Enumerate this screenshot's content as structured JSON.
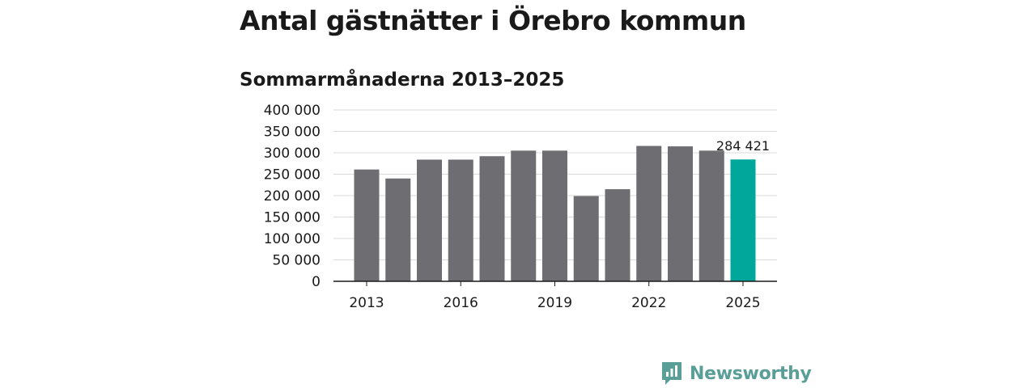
{
  "header": {
    "title": "Antal gästnätter i Örebro kommun",
    "subtitle": "Sommarmånaderna 2013–2025"
  },
  "branding": {
    "logo_text": "Newsworthy",
    "logo_icon": "bar-chart-speech-bubble-icon",
    "logo_color": "#5a9e98"
  },
  "chart_data": {
    "type": "bar",
    "title": "Antal gästnätter i Örebro kommun",
    "subtitle": "Sommarmånaderna 2013–2025",
    "xlabel": "",
    "ylabel": "",
    "categories": [
      "2013",
      "2014",
      "2015",
      "2016",
      "2017",
      "2018",
      "2019",
      "2020",
      "2021",
      "2022",
      "2023",
      "2024",
      "2025"
    ],
    "values": [
      261000,
      240000,
      284000,
      284000,
      292000,
      305000,
      305000,
      199000,
      215000,
      316000,
      315000,
      305000,
      284421
    ],
    "x_tick_labels": [
      "2013",
      "2016",
      "2019",
      "2022",
      "2025"
    ],
    "y_ticks": [
      0,
      50000,
      100000,
      150000,
      200000,
      250000,
      300000,
      350000,
      400000
    ],
    "y_tick_labels": [
      "0",
      "50 000",
      "100 000",
      "150 000",
      "200 000",
      "250 000",
      "300 000",
      "350 000",
      "400 000"
    ],
    "ylim": [
      0,
      400000
    ],
    "grid": true,
    "bar_color": "#6e6d72",
    "highlight_color": "#00a79a",
    "highlight_category": "2025",
    "annotation": {
      "category": "2025",
      "text": "284 421"
    }
  }
}
